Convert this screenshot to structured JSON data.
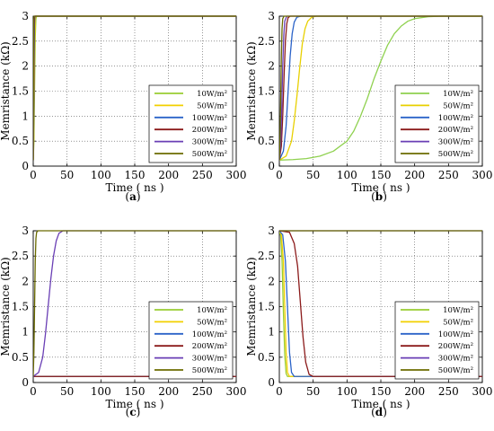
{
  "figure": {
    "panels": [
      {
        "label_pre": "(",
        "label_mid": "a",
        "label_post": ")"
      },
      {
        "label_pre": "(",
        "label_mid": "b",
        "label_post": ")"
      },
      {
        "label_pre": "(",
        "label_mid": "c",
        "label_post": ")"
      },
      {
        "label_pre": "(",
        "label_mid": "d",
        "label_post": ")"
      }
    ]
  },
  "chart_data": [
    {
      "type": "line",
      "xlabel": "Time ( ns )",
      "ylabel": "Memristance (kΩ)",
      "xlim": [
        0,
        300
      ],
      "ylim": [
        0,
        3
      ],
      "xticks": [
        0,
        50,
        100,
        150,
        200,
        250,
        300
      ],
      "yticks": [
        0,
        0.5,
        1,
        1.5,
        2,
        2.5,
        3
      ],
      "ytick_labels": [
        "0",
        "0.5",
        "1",
        "1.5",
        "2",
        "2.5",
        "3"
      ],
      "grid": true,
      "grid_style": "dotted",
      "legend_position": "lower-right",
      "series": [
        {
          "name": "10W/m²",
          "color": "#9acd32",
          "x": [
            0,
            1,
            2,
            3,
            4,
            5,
            300
          ],
          "y": [
            0.12,
            0.5,
            1.6,
            2.6,
            2.95,
            3.0,
            3.0
          ]
        },
        {
          "name": "50W/m²",
          "color": "#f2d000",
          "x": [
            0,
            0.8,
            1.6,
            2.4,
            3.2,
            4,
            300
          ],
          "y": [
            0.12,
            0.6,
            1.8,
            2.7,
            2.97,
            3.0,
            3.0
          ]
        },
        {
          "name": "100W/m²",
          "color": "#2b63c8",
          "x": [
            0,
            0.6,
            1.2,
            1.8,
            2.4,
            3,
            300
          ],
          "y": [
            0.12,
            0.7,
            1.9,
            2.8,
            2.98,
            3.0,
            3.0
          ]
        },
        {
          "name": "200W/m²",
          "color": "#8b1a1a",
          "x": [
            0,
            0.5,
            1,
            1.5,
            2,
            2.5,
            300
          ],
          "y": [
            0.12,
            0.8,
            2.0,
            2.85,
            2.98,
            3.0,
            3.0
          ]
        },
        {
          "name": "300W/m²",
          "color": "#6a3fb5",
          "x": [
            0,
            0.4,
            0.8,
            1.2,
            1.6,
            2,
            300
          ],
          "y": [
            0.12,
            0.9,
            2.1,
            2.9,
            2.99,
            3.0,
            3.0
          ]
        },
        {
          "name": "500W/m²",
          "color": "#6b6b00",
          "x": [
            0,
            0.3,
            0.6,
            0.9,
            1.2,
            1.5,
            300
          ],
          "y": [
            0.12,
            1.0,
            2.2,
            2.92,
            2.99,
            3.0,
            3.0
          ]
        }
      ]
    },
    {
      "type": "line",
      "xlabel": "Time ( ns )",
      "ylabel": "Memristance (kΩ)",
      "xlim": [
        0,
        300
      ],
      "ylim": [
        0,
        3
      ],
      "xticks": [
        0,
        50,
        100,
        150,
        200,
        250,
        300
      ],
      "yticks": [
        0,
        0.5,
        1,
        1.5,
        2,
        2.5,
        3
      ],
      "ytick_labels": [
        "0",
        "0.5",
        "1",
        "1.5",
        "2",
        "2.5",
        "3"
      ],
      "grid": true,
      "grid_style": "dotted",
      "legend_position": "lower-right",
      "series": [
        {
          "name": "10W/m²",
          "color": "#8fd14f",
          "x": [
            0,
            20,
            40,
            60,
            80,
            100,
            110,
            120,
            130,
            140,
            150,
            160,
            170,
            180,
            190,
            200,
            220,
            240,
            260,
            300
          ],
          "y": [
            0.12,
            0.13,
            0.15,
            0.2,
            0.3,
            0.5,
            0.7,
            1.0,
            1.35,
            1.75,
            2.1,
            2.42,
            2.65,
            2.8,
            2.9,
            2.95,
            2.99,
            3.0,
            3.0,
            3.0
          ]
        },
        {
          "name": "50W/m²",
          "color": "#e8d000",
          "x": [
            0,
            10,
            18,
            22,
            26,
            30,
            34,
            38,
            42,
            48,
            55,
            300
          ],
          "y": [
            0.12,
            0.2,
            0.5,
            0.9,
            1.4,
            1.95,
            2.45,
            2.75,
            2.9,
            2.98,
            3.0,
            3.0
          ]
        },
        {
          "name": "100W/m²",
          "color": "#2b63c8",
          "x": [
            0,
            6,
            10,
            13,
            16,
            19,
            22,
            26,
            32,
            300
          ],
          "y": [
            0.12,
            0.3,
            0.8,
            1.5,
            2.2,
            2.65,
            2.88,
            2.98,
            3.0,
            3.0
          ]
        },
        {
          "name": "200W/m²",
          "color": "#8b1a1a",
          "x": [
            0,
            3,
            5,
            7,
            9,
            11,
            13,
            16,
            300
          ],
          "y": [
            0.12,
            0.4,
            1.0,
            1.8,
            2.5,
            2.85,
            2.97,
            3.0,
            3.0
          ]
        },
        {
          "name": "300W/m²",
          "color": "#6a3fb5",
          "x": [
            0,
            2,
            3.5,
            5,
            6.5,
            8,
            11,
            300
          ],
          "y": [
            0.12,
            0.45,
            1.1,
            2.0,
            2.6,
            2.9,
            3.0,
            3.0
          ]
        },
        {
          "name": "500W/m²",
          "color": "#6b6b00",
          "x": [
            0,
            1,
            2,
            3,
            4,
            5,
            7,
            300
          ],
          "y": [
            0.12,
            0.5,
            1.3,
            2.2,
            2.75,
            2.95,
            3.0,
            3.0
          ]
        }
      ]
    },
    {
      "type": "line",
      "xlabel": "Time ( ns )",
      "ylabel": "Memristance (kΩ)",
      "xlim": [
        0,
        300
      ],
      "ylim": [
        0,
        3
      ],
      "xticks": [
        0,
        50,
        100,
        150,
        200,
        250,
        300
      ],
      "yticks": [
        0,
        0.5,
        1,
        1.5,
        2,
        2.5,
        3
      ],
      "ytick_labels": [
        "0",
        "0.5",
        "1",
        "1.5",
        "2",
        "2.5",
        "3"
      ],
      "grid": true,
      "grid_style": "dotted",
      "legend_position": "lower-right",
      "series": [
        {
          "name": "10W/m²",
          "color": "#9acd32",
          "x": [
            0,
            300
          ],
          "y": [
            0.12,
            0.12
          ]
        },
        {
          "name": "50W/m²",
          "color": "#f2d000",
          "x": [
            0,
            300
          ],
          "y": [
            0.12,
            0.12
          ]
        },
        {
          "name": "100W/m²",
          "color": "#2b63c8",
          "x": [
            0,
            300
          ],
          "y": [
            0.12,
            0.12
          ]
        },
        {
          "name": "200W/m²",
          "color": "#8b1a1a",
          "x": [
            0,
            300
          ],
          "y": [
            0.12,
            0.12
          ]
        },
        {
          "name": "300W/m²",
          "color": "#6a3fb5",
          "x": [
            0,
            8,
            14,
            18,
            22,
            26,
            30,
            34,
            38,
            44,
            300
          ],
          "y": [
            0.12,
            0.2,
            0.5,
            0.95,
            1.5,
            2.05,
            2.5,
            2.8,
            2.95,
            3.0,
            3.0
          ]
        },
        {
          "name": "500W/m²",
          "color": "#6b6b00",
          "x": [
            0,
            1,
            2,
            3,
            4,
            5,
            7,
            300
          ],
          "y": [
            0.12,
            0.6,
            1.5,
            2.4,
            2.85,
            2.97,
            3.0,
            3.0
          ]
        }
      ]
    },
    {
      "type": "line",
      "xlabel": "Time ( ns )",
      "ylabel": "Memristance (kΩ)",
      "xlim": [
        0,
        300
      ],
      "ylim": [
        0,
        3
      ],
      "xticks": [
        0,
        50,
        100,
        150,
        200,
        250,
        300
      ],
      "yticks": [
        0,
        0.5,
        1,
        1.5,
        2,
        2.5,
        3
      ],
      "ytick_labels": [
        "0",
        "0.5",
        "1",
        "1.5",
        "2",
        "2.5",
        "3"
      ],
      "grid": true,
      "grid_style": "dotted",
      "legend_position": "lower-right",
      "series": [
        {
          "name": "10W/m²",
          "color": "#9acd32",
          "x": [
            0,
            2,
            4,
            6,
            8,
            10,
            12,
            300
          ],
          "y": [
            3.0,
            2.9,
            2.4,
            1.4,
            0.55,
            0.18,
            0.12,
            0.12
          ]
        },
        {
          "name": "50W/m²",
          "color": "#f2d000",
          "x": [
            0,
            3,
            6,
            8,
            10,
            12,
            15,
            300
          ],
          "y": [
            3.0,
            2.92,
            2.4,
            1.5,
            0.6,
            0.2,
            0.12,
            0.12
          ]
        },
        {
          "name": "100W/m²",
          "color": "#2b63c8",
          "x": [
            0,
            5,
            9,
            12,
            15,
            18,
            22,
            300
          ],
          "y": [
            3.0,
            2.92,
            2.4,
            1.5,
            0.6,
            0.2,
            0.12,
            0.12
          ]
        },
        {
          "name": "200W/m²",
          "color": "#8b1a1a",
          "x": [
            0,
            15,
            22,
            27,
            31,
            35,
            39,
            44,
            50,
            300
          ],
          "y": [
            3.0,
            2.97,
            2.75,
            2.3,
            1.6,
            0.9,
            0.4,
            0.16,
            0.12,
            0.12
          ]
        },
        {
          "name": "300W/m²",
          "color": "#6a3fb5",
          "x": [
            0,
            300
          ],
          "y": [
            3.0,
            3.0
          ]
        },
        {
          "name": "500W/m²",
          "color": "#6b6b00",
          "x": [
            0,
            300
          ],
          "y": [
            3.0,
            3.0
          ]
        }
      ]
    }
  ]
}
